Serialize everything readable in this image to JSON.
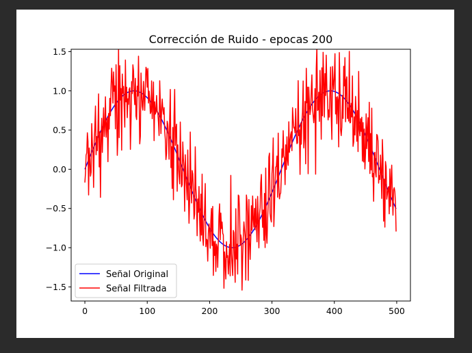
{
  "window": {
    "background": "#2b2b2b",
    "figure_background": "#ffffff"
  },
  "chart_data": {
    "type": "line",
    "title": "Corrección de Ruido - epocas 200",
    "xlabel": "",
    "ylabel": "",
    "xlim": [
      -22,
      522
    ],
    "ylim": [
      -1.68,
      1.53
    ],
    "xticks": [
      0,
      100,
      200,
      300,
      400,
      500
    ],
    "xtick_labels": [
      "0",
      "100",
      "200",
      "300",
      "400",
      "500"
    ],
    "yticks": [
      -1.5,
      -1.0,
      -0.5,
      0.0,
      0.5,
      1.0,
      1.5
    ],
    "ytick_labels": [
      "−1.5",
      "−1.0",
      "−0.5",
      "0.0",
      "0.5",
      "1.0",
      "1.5"
    ],
    "grid": false,
    "legend_position": "lower-left",
    "series": [
      {
        "name": "Señal Original",
        "color": "#0000ff",
        "generator": "sine",
        "x_start": 0,
        "x_end": 499,
        "period": 315,
        "amplitude": 1.0,
        "samples": 500
      },
      {
        "name": "Señal Filtrada",
        "color": "#ff0000",
        "generator": "noisy-sine",
        "x_start": 0,
        "x_end": 499,
        "period": 315,
        "amplitude": 1.0,
        "noise_std": 0.3,
        "samples": 500,
        "seed": 20
      }
    ]
  }
}
